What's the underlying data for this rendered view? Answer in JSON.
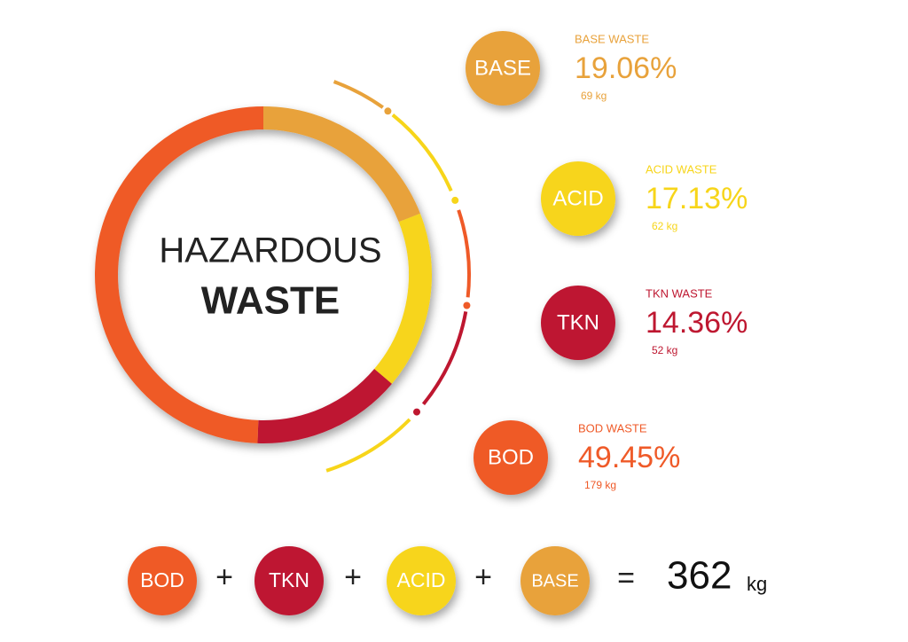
{
  "chart_data": {
    "type": "donut",
    "title": "HAZARDOUS",
    "subtitle": "WASTE",
    "categories": [
      "BASE",
      "ACID",
      "TKN",
      "BOD"
    ],
    "category_titles": [
      "BASE WASTE",
      "ACID WASTE",
      "TKN WASTE",
      "BOD WASTE"
    ],
    "values": [
      19.06,
      17.13,
      14.36,
      49.45
    ],
    "value_labels": [
      "19.06%",
      "17.13%",
      "14.36%",
      "49.45%"
    ],
    "masses": [
      69,
      62,
      52,
      179
    ],
    "mass_labels": [
      "69 kg",
      "62 kg",
      "52 kg",
      "179 kg"
    ],
    "colors": [
      "#E8A23B",
      "#F7D51A",
      "#BE1730",
      "#EF5A28"
    ],
    "plus": "+",
    "equals": "=",
    "total": 362,
    "total_unit": "kg"
  }
}
